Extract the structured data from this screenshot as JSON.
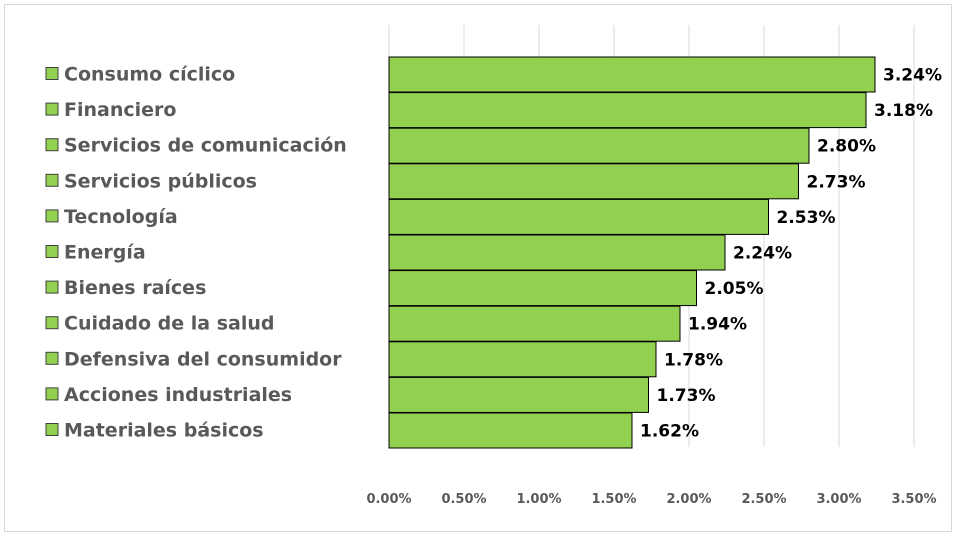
{
  "chart_data": {
    "type": "bar",
    "orientation": "horizontal",
    "title": "",
    "xlabel": "",
    "ylabel": "",
    "categories": [
      "Consumo cíclico",
      "Financiero",
      "Servicios de comunicación",
      "Servicios públicos",
      "Tecnología",
      "Energía",
      "Bienes raíces",
      "Cuidado de la salud",
      "Defensiva del consumidor",
      "Acciones industriales",
      "Materiales básicos"
    ],
    "values": [
      3.24,
      3.18,
      2.8,
      2.73,
      2.53,
      2.24,
      2.05,
      1.94,
      1.78,
      1.73,
      1.62
    ],
    "value_labels": [
      "3.24%",
      "3.18%",
      "2.80%",
      "2.73%",
      "2.53%",
      "2.24%",
      "2.05%",
      "1.94%",
      "1.78%",
      "1.73%",
      "1.62%"
    ],
    "xlim": [
      0,
      3.5
    ],
    "x_ticks": [
      0,
      0.5,
      1,
      1.5,
      2,
      2.5,
      3,
      3.5
    ],
    "x_tick_labels": [
      "0.00%",
      "0.50%",
      "1.00%",
      "1.50%",
      "2.00%",
      "2.50%",
      "3.00%",
      "3.50%"
    ],
    "grid": "vertical",
    "legend": "left",
    "bar_color": "#92d050",
    "bar_edge_color": "#000000",
    "grid_color": "#d9d9d9",
    "label_color": "#595959",
    "value_label_color": "#000000"
  }
}
